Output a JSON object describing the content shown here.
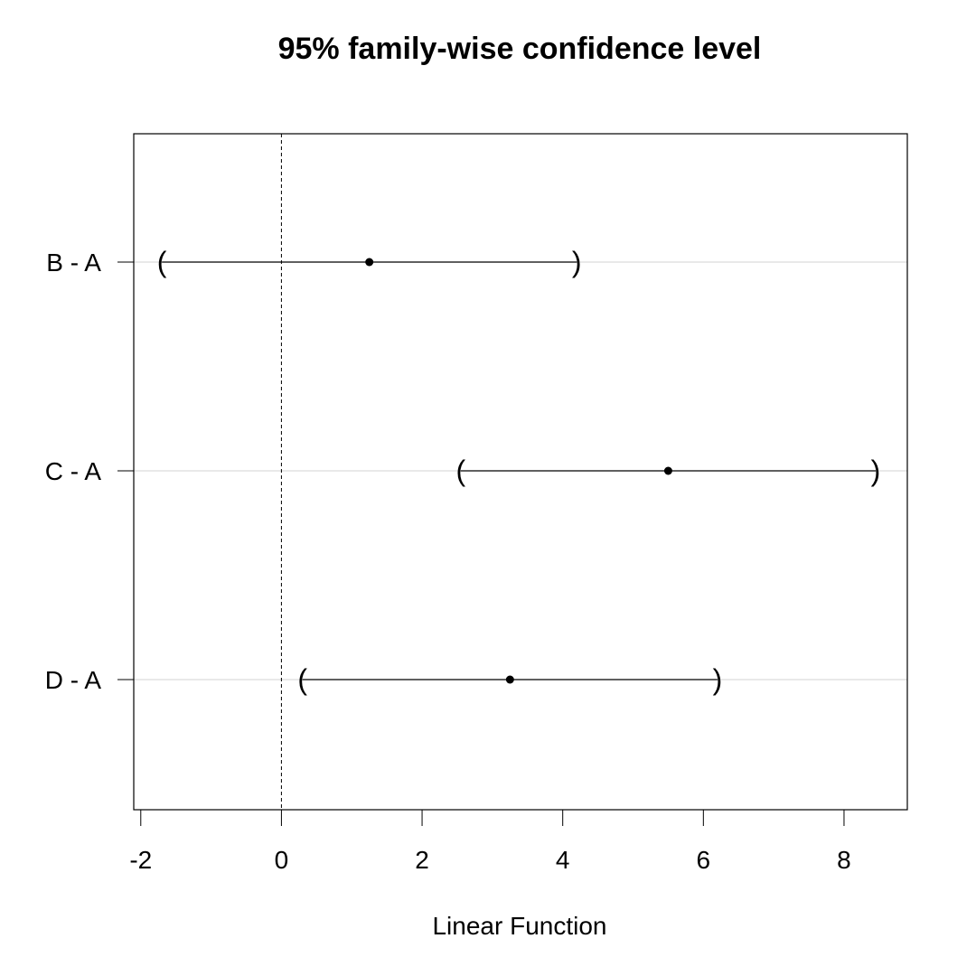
{
  "chart_data": {
    "type": "interval",
    "title": "95% family-wise confidence level",
    "xlabel": "Linear Function",
    "ylabel": "",
    "xlim": [
      -2.1,
      8.9
    ],
    "xticks": [
      -2,
      0,
      2,
      4,
      6,
      8
    ],
    "reference_line": {
      "x": 0,
      "style": "dashed"
    },
    "grid": "horizontal at each comparison",
    "legend": "none",
    "comparisons": [
      {
        "label": "B - A",
        "estimate": 1.25,
        "lower": -1.7,
        "upper": 4.2
      },
      {
        "label": "C - A",
        "estimate": 5.5,
        "lower": 2.55,
        "upper": 8.45
      },
      {
        "label": "D - A",
        "estimate": 3.25,
        "lower": 0.3,
        "upper": 6.2
      }
    ]
  }
}
